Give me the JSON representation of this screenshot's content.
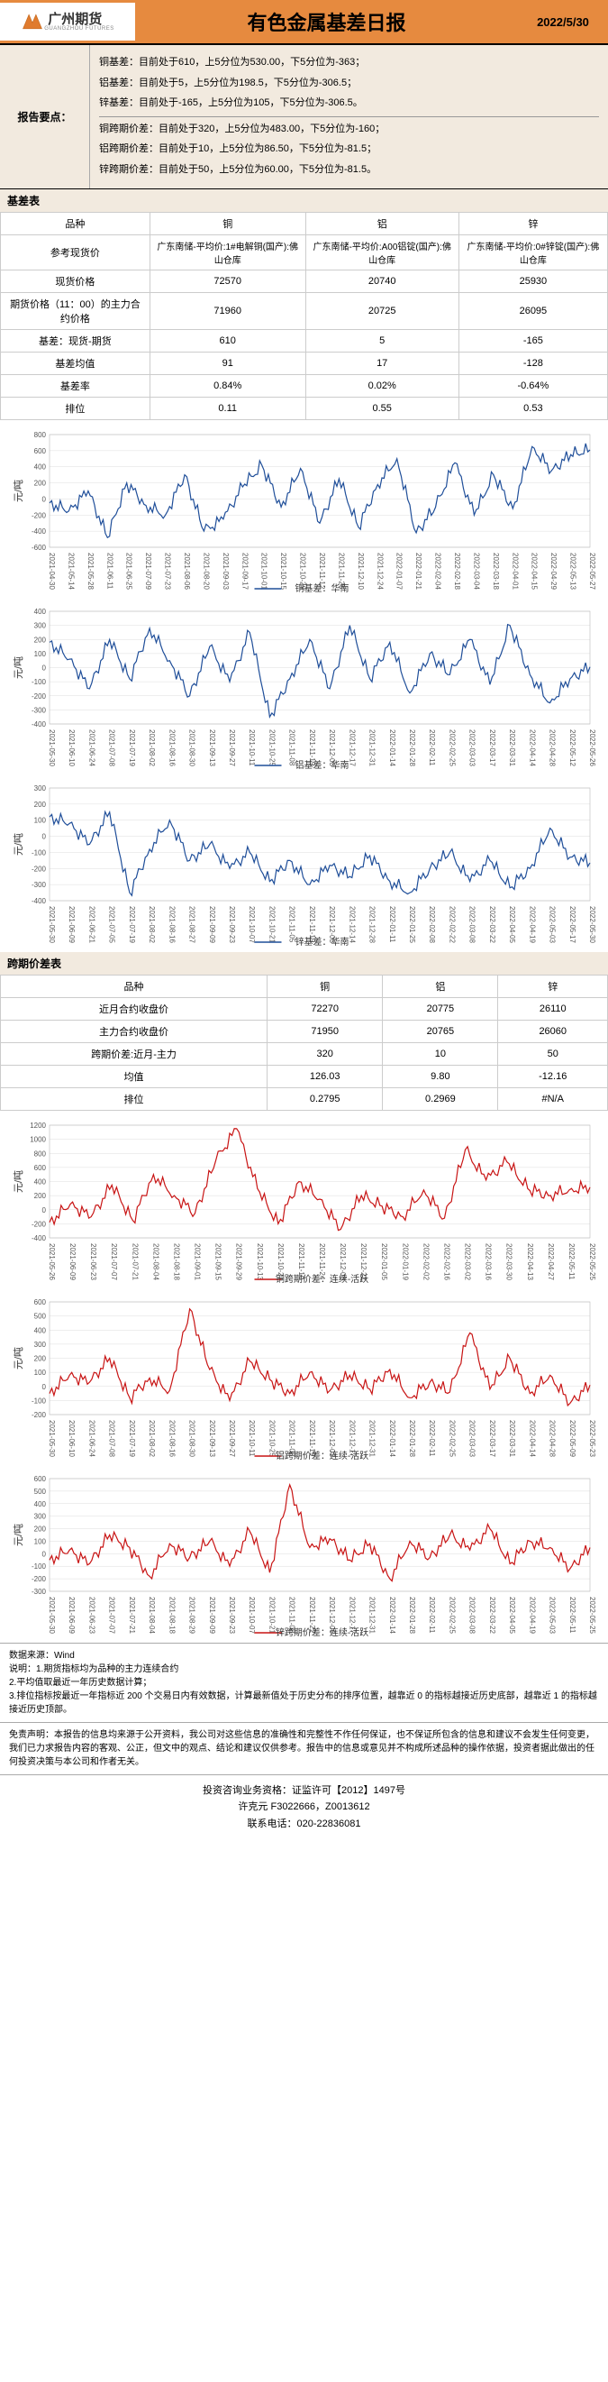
{
  "header": {
    "company": "广州期货",
    "company_sub": "GUANGZHOU FUTURES",
    "title": "有色金属基差日报",
    "date": "2022/5/30",
    "accent_color": "#e68a3f",
    "logo_fill": "#e07b2e"
  },
  "keypoints": {
    "label": "报告要点：",
    "group1": [
      "铜基差：目前处于610，上5分位为530.00，下5分位为-363；",
      "铝基差：目前处于5，上5分位为198.5，下5分位为-306.5；",
      "锌基差：目前处于-165，上5分位为105，下5分位为-306.5。"
    ],
    "group2": [
      "铜跨期价差：目前处于320，上5分位为483.00，下5分位为-160；",
      "铝跨期价差：目前处于10，上5分位为86.50，下5分位为-81.5；",
      "锌跨期价差：目前处于50，上5分位为60.00，下5分位为-81.5。"
    ]
  },
  "basis_table": {
    "title": "基差表",
    "columns": [
      "品种",
      "铜",
      "铝",
      "锌"
    ],
    "ref_row": {
      "label": "参考现货价",
      "vals": [
        "广东南储-平均价:1#电解铜(国产):佛山仓库",
        "广东南储-平均价:A00铝锭(国产):佛山仓库",
        "广东南储-平均价:0#锌锭(国产):佛山仓库"
      ]
    },
    "rows": [
      {
        "label": "现货价格",
        "vals": [
          "72570",
          "20740",
          "25930"
        ]
      },
      {
        "label": "期货价格（11：00）的主力合约价格",
        "vals": [
          "71960",
          "20725",
          "26095"
        ]
      },
      {
        "label": "基差：现货-期货",
        "vals": [
          "610",
          "5",
          "-165"
        ]
      },
      {
        "label": "基差均值",
        "vals": [
          "91",
          "17",
          "-128"
        ]
      },
      {
        "label": "基差率",
        "vals": [
          "0.84%",
          "0.02%",
          "-0.64%"
        ]
      },
      {
        "label": "排位",
        "vals": [
          "0.11",
          "0.55",
          "0.53"
        ]
      }
    ]
  },
  "charts_basis": [
    {
      "legend": "铜基差：华南",
      "color": "#1f4e99",
      "ylabel": "元/吨",
      "ylim": [
        -600,
        800
      ],
      "ytick_step": 200,
      "xlabels": [
        "2021-04-30",
        "2021-05-14",
        "2021-05-28",
        "2021-06-11",
        "2021-06-25",
        "2021-07-09",
        "2021-07-23",
        "2021-08-06",
        "2021-08-20",
        "2021-09-03",
        "2021-09-17",
        "2021-10-01",
        "2021-10-15",
        "2021-10-29",
        "2021-11-12",
        "2021-11-26",
        "2021-12-10",
        "2021-12-24",
        "2022-01-07",
        "2022-01-21",
        "2022-02-04",
        "2022-02-18",
        "2022-03-04",
        "2022-03-18",
        "2022-04-01",
        "2022-04-15",
        "2022-04-29",
        "2022-05-13",
        "2022-05-27"
      ],
      "values": [
        -50,
        -150,
        100,
        -480,
        200,
        -80,
        -200,
        300,
        -400,
        -250,
        150,
        420,
        -100,
        380,
        -300,
        250,
        -350,
        180,
        500,
        -420,
        -100,
        450,
        -200,
        300,
        -120,
        650,
        350,
        550,
        610
      ]
    },
    {
      "legend": "铝基差：华南",
      "color": "#1f4e99",
      "ylabel": "元/吨",
      "ylim": [
        -400,
        400
      ],
      "ytick_step": 100,
      "xlabels": [
        "2021-05-30",
        "2021-06-10",
        "2021-06-24",
        "2021-07-08",
        "2021-07-19",
        "2021-08-02",
        "2021-08-16",
        "2021-08-30",
        "2021-09-13",
        "2021-09-27",
        "2021-10-11",
        "2021-10-25",
        "2021-11-08",
        "2021-11-19",
        "2021-12-03",
        "2021-12-17",
        "2021-12-31",
        "2022-01-14",
        "2022-01-28",
        "2022-02-11",
        "2022-02-25",
        "2022-03-03",
        "2022-03-17",
        "2022-03-31",
        "2022-04-14",
        "2022-04-28",
        "2022-05-12",
        "2022-05-26"
      ],
      "values": [
        180,
        60,
        -150,
        200,
        -80,
        280,
        50,
        -200,
        150,
        -100,
        250,
        -350,
        -80,
        200,
        -150,
        300,
        -80,
        180,
        -180,
        100,
        -50,
        200,
        -120,
        300,
        -50,
        -250,
        -80,
        5
      ]
    },
    {
      "legend": "锌基差：华南",
      "color": "#1f4e99",
      "ylabel": "元/吨",
      "ylim": [
        -400,
        300
      ],
      "ytick_step": 100,
      "xlabels": [
        "2021-05-30",
        "2021-06-09",
        "2021-06-21",
        "2021-07-05",
        "2021-07-19",
        "2021-08-02",
        "2021-08-16",
        "2021-08-27",
        "2021-09-09",
        "2021-09-23",
        "2021-10-07",
        "2021-10-21",
        "2021-11-05",
        "2021-11-19",
        "2021-12-03",
        "2021-12-14",
        "2021-12-28",
        "2022-01-11",
        "2022-01-25",
        "2022-02-08",
        "2022-02-22",
        "2022-03-08",
        "2022-03-22",
        "2022-04-05",
        "2022-04-19",
        "2022-05-03",
        "2022-05-17",
        "2022-05-30"
      ],
      "values": [
        120,
        80,
        -50,
        150,
        -350,
        -80,
        100,
        -150,
        -50,
        -200,
        -100,
        -280,
        -150,
        -300,
        -180,
        -250,
        -120,
        -280,
        -350,
        -200,
        -100,
        -280,
        -150,
        -320,
        -200,
        50,
        -130,
        -165
      ]
    }
  ],
  "spread_table": {
    "title": "跨期价差表",
    "columns": [
      "品种",
      "铜",
      "铝",
      "锌"
    ],
    "rows": [
      {
        "label": "近月合约收盘价",
        "vals": [
          "72270",
          "20775",
          "26110"
        ]
      },
      {
        "label": "主力合约收盘价",
        "vals": [
          "71950",
          "20765",
          "26060"
        ]
      },
      {
        "label": "跨期价差:近月-主力",
        "vals": [
          "320",
          "10",
          "50"
        ]
      },
      {
        "label": "均值",
        "vals": [
          "126.03",
          "9.80",
          "-12.16"
        ]
      },
      {
        "label": "排位",
        "vals": [
          "0.2795",
          "0.2969",
          "#N/A"
        ]
      }
    ]
  },
  "charts_spread": [
    {
      "legend": "铜跨期价差：连续-活跃",
      "color": "#c81414",
      "ylabel": "元/吨",
      "ylim": [
        -400,
        1200
      ],
      "ytick_step": 200,
      "xlabels": [
        "2021-05-26",
        "2021-06-09",
        "2021-06-23",
        "2021-07-07",
        "2021-07-21",
        "2021-08-04",
        "2021-08-18",
        "2021-09-01",
        "2021-09-15",
        "2021-09-29",
        "2021-10-13",
        "2021-10-27",
        "2021-11-10",
        "2021-11-24",
        "2021-12-08",
        "2021-12-22",
        "2022-01-05",
        "2022-01-19",
        "2022-02-02",
        "2022-02-16",
        "2022-03-02",
        "2022-03-16",
        "2022-03-30",
        "2022-04-13",
        "2022-04-27",
        "2022-05-11",
        "2022-05-25"
      ],
      "values": [
        -180,
        80,
        -100,
        350,
        -150,
        500,
        200,
        -50,
        700,
        1150,
        300,
        -200,
        400,
        150,
        -280,
        200,
        50,
        -100,
        280,
        -120,
        850,
        420,
        680,
        300,
        200,
        280,
        320
      ]
    },
    {
      "legend": "铝跨期价差：连续-活跃",
      "color": "#c81414",
      "ylabel": "元/吨",
      "ylim": [
        -200,
        600
      ],
      "ytick_step": 100,
      "xlabels": [
        "2021-05-30",
        "2021-06-10",
        "2021-06-24",
        "2021-07-08",
        "2021-07-19",
        "2021-08-02",
        "2021-08-16",
        "2021-08-30",
        "2021-09-13",
        "2021-09-27",
        "2021-10-11",
        "2021-10-25",
        "2021-11-08",
        "2021-11-19",
        "2021-12-03",
        "2021-12-17",
        "2021-12-31",
        "2022-01-14",
        "2022-01-28",
        "2022-02-11",
        "2022-02-25",
        "2022-03-03",
        "2022-03-17",
        "2022-03-31",
        "2022-04-14",
        "2022-04-28",
        "2022-05-09",
        "2022-05-23"
      ],
      "values": [
        -50,
        80,
        30,
        200,
        -80,
        60,
        -30,
        550,
        120,
        -100,
        180,
        50,
        -50,
        100,
        -30,
        80,
        -20,
        120,
        -80,
        30,
        -40,
        380,
        -20,
        200,
        -50,
        80,
        -120,
        10
      ]
    },
    {
      "legend": "锌跨期价差：连续-活跃",
      "color": "#c81414",
      "ylabel": "元/吨",
      "ylim": [
        -300,
        600
      ],
      "ytick_step": 100,
      "xlabels": [
        "2021-05-30",
        "2021-06-09",
        "2021-06-23",
        "2021-07-07",
        "2021-07-21",
        "2021-08-04",
        "2021-08-18",
        "2021-08-29",
        "2021-09-09",
        "2021-09-23",
        "2021-10-07",
        "2021-10-21",
        "2021-11-08",
        "2021-11-22",
        "2021-12-06",
        "2021-12-17",
        "2021-12-31",
        "2022-01-14",
        "2022-01-28",
        "2022-02-11",
        "2022-02-25",
        "2022-03-08",
        "2022-03-22",
        "2022-04-05",
        "2022-04-19",
        "2022-05-03",
        "2022-05-11",
        "2022-05-25"
      ],
      "values": [
        -50,
        30,
        -80,
        150,
        50,
        -180,
        80,
        -30,
        100,
        -100,
        180,
        -150,
        550,
        50,
        120,
        -50,
        80,
        -200,
        100,
        -30,
        150,
        30,
        200,
        -80,
        100,
        50,
        -120,
        50
      ]
    }
  ],
  "notes": {
    "source": "数据来源：Wind",
    "lines": [
      "说明：1.期货指标均为品种的主力连续合约",
      "2.平均值取最近一年历史数据计算；",
      "3.排位指标按最近一年指标近 200 个交易日内有效数据，计算最新值处于历史分布的排序位置，越靠近 0 的指标越接近历史底部，越靠近 1 的指标越接近历史顶部。"
    ]
  },
  "disclaimer": "免责声明：本报告的信息均来源于公开资料，我公司对这些信息的准确性和完整性不作任何保证，也不保证所包含的信息和建议不会发生任何变更，我们已力求报告内容的客观、公正，但文中的观点、结论和建议仅供参考。报告中的信息或意见并不构成所述品种的操作依据，投资者据此做出的任何投资决策与本公司和作者无关。",
  "footer": {
    "line1_a": "投资咨询业务资格：证监许可【2012】1497号",
    "line2": "许克元 F3022666，Z0013612",
    "line3": "联系电话：020-22836081"
  }
}
